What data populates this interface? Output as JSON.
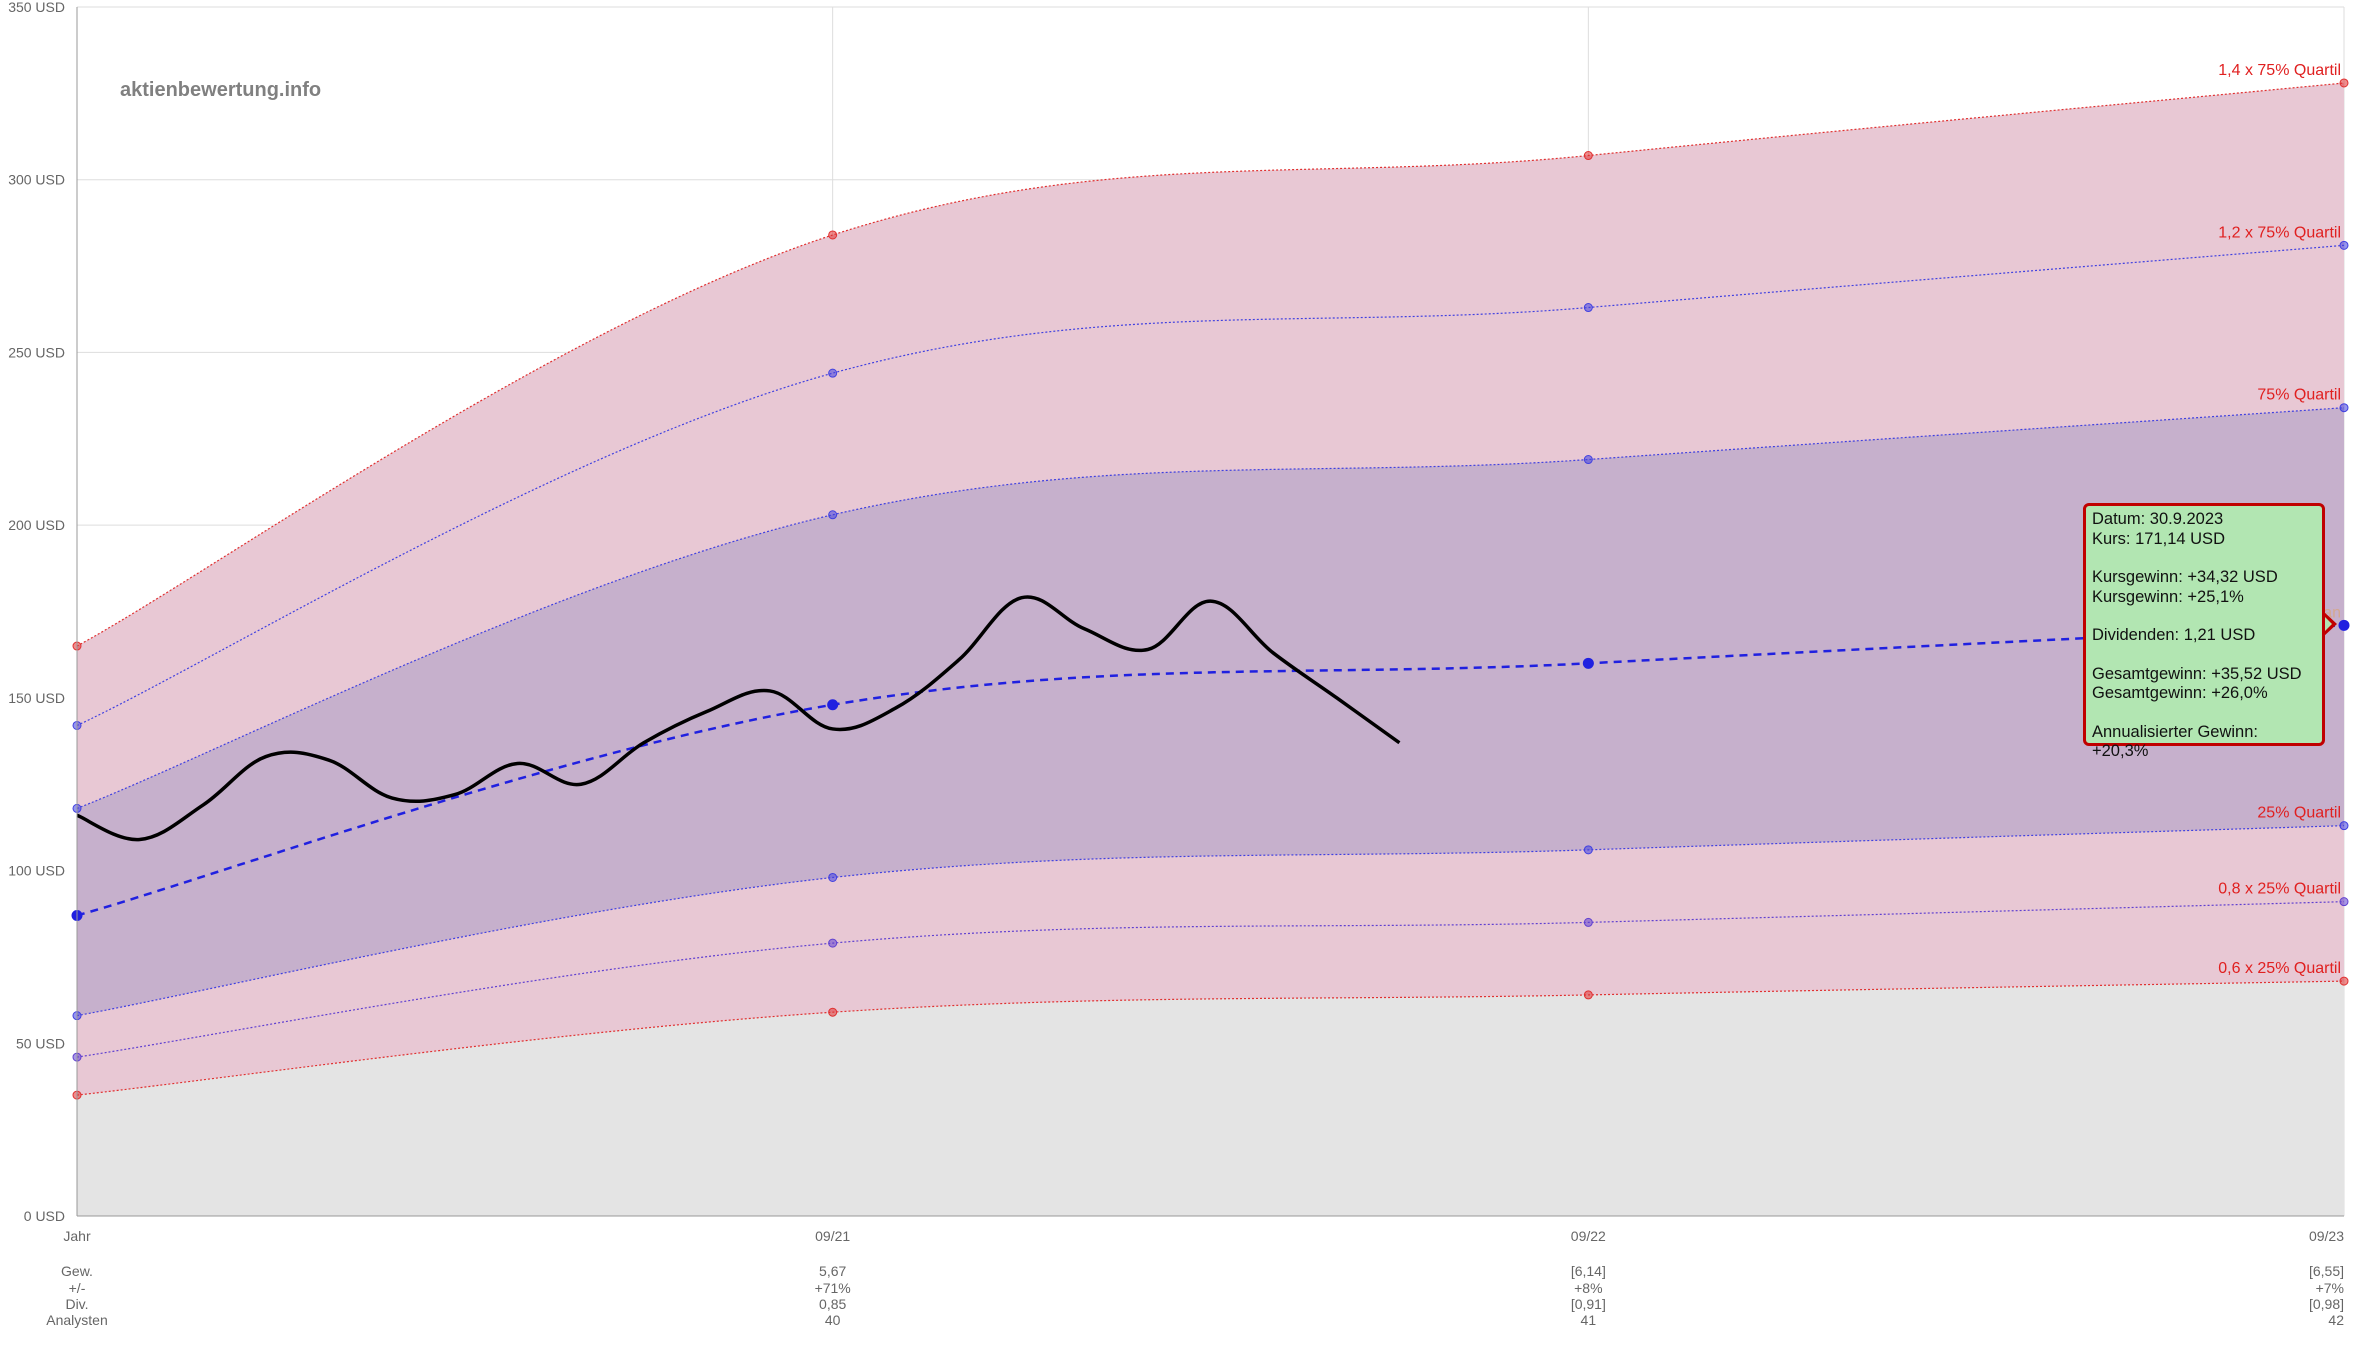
{
  "watermark": "aktienbewertung.info",
  "chart_data": {
    "type": "line",
    "y_unit": "USD",
    "ylim": [
      0,
      350
    ],
    "y_ticks": [
      "0 USD",
      "50 USD",
      "100 USD",
      "150 USD",
      "200 USD",
      "250 USD",
      "300 USD",
      "350 USD"
    ],
    "grid": true,
    "x_labels": [
      "Jahr",
      "09/21",
      "09/22",
      "09/23"
    ],
    "x_positions": [
      0,
      1,
      2,
      3
    ],
    "series": [
      {
        "name": "1,4 x 75% Quartil",
        "values": [
          165,
          284,
          307,
          328
        ],
        "color": "#e03030",
        "dash": "dotted",
        "fill": "#e8c8d4"
      },
      {
        "name": "1,2 x 75% Quartil",
        "values": [
          142,
          244,
          263,
          281
        ],
        "color": "#4040e0",
        "dash": "dotted"
      },
      {
        "name": "75% Quartil",
        "values": [
          118,
          203,
          219,
          234
        ],
        "color": "#4040e0",
        "dash": "dotted",
        "fill": "#c6b0cc"
      },
      {
        "name": "Median",
        "values": [
          87,
          148,
          160,
          171
        ],
        "color": "#2020e0",
        "dash": "dashed"
      },
      {
        "name": "25% Quartil",
        "values": [
          58,
          98,
          106,
          113
        ],
        "color": "#4040e0",
        "dash": "dotted",
        "fill": "#e8c8d4"
      },
      {
        "name": "0,8 x 25% Quartil",
        "values": [
          46,
          79,
          85,
          91
        ],
        "color": "#6040d0",
        "dash": "dotted"
      },
      {
        "name": "0,6 x 25% Quartil",
        "values": [
          35,
          59,
          64,
          68
        ],
        "color": "#e03030",
        "dash": "dotted",
        "fill": "#e4e4e4"
      }
    ],
    "price": {
      "x": [
        0,
        0.083,
        0.167,
        0.25,
        0.333,
        0.417,
        0.5,
        0.583,
        0.667,
        0.75,
        0.833,
        0.917,
        1.0,
        1.083,
        1.167,
        1.25,
        1.333,
        1.417,
        1.5,
        1.583,
        1.667,
        1.75
      ],
      "values": [
        116,
        109,
        119,
        133,
        132,
        121,
        122,
        131,
        125,
        137,
        146,
        152,
        141,
        147,
        161,
        179,
        170,
        164,
        178,
        163,
        150,
        137
      ],
      "color": "#000000"
    },
    "table": {
      "rows": [
        "Gew.",
        "+/-",
        "Div.",
        "Analysten"
      ],
      "columns": [
        {
          "x": 1,
          "values": [
            "5,67",
            "+71%",
            "0,85",
            "40"
          ]
        },
        {
          "x": 2,
          "values": [
            "[6,14]",
            "+8%",
            "[0,91]",
            "41"
          ]
        },
        {
          "x": 3,
          "values": [
            "[6,55]",
            "+7%",
            "[0,98]",
            "42"
          ]
        }
      ]
    }
  },
  "tooltip": {
    "datum": "Datum: 30.9.2023",
    "kurs": "Kurs: 171,14 USD",
    "kursgewinn_abs": "Kursgewinn: +34,32 USD",
    "kursgewinn_pct": "Kursgewinn: +25,1%",
    "dividenden": "Dividenden: 1,21 USD",
    "gesamt_abs": "Gesamtgewinn: +35,52 USD",
    "gesamt_pct": "Gesamtgewinn: +26,0%",
    "annualisiert": "Annualisierter Gewinn: +20,3%"
  }
}
